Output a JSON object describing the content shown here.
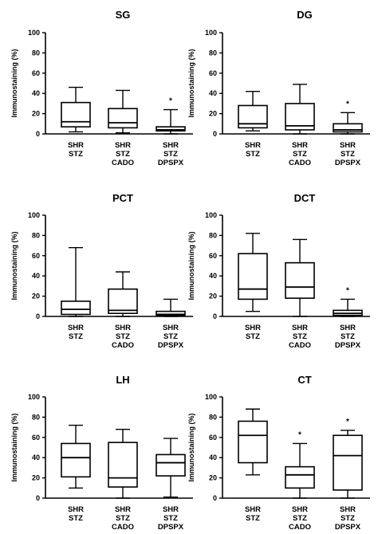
{
  "chart_data": [
    {
      "type": "box",
      "title": "SG",
      "ylabel": "Immunostaining (%)",
      "ylim": [
        0,
        100
      ],
      "yticks": [
        "0",
        "20",
        "40",
        "60",
        "80",
        "100"
      ],
      "categories": [
        [
          "SHR",
          "STZ"
        ],
        [
          "SHR",
          "STZ",
          "CADO"
        ],
        [
          "SHR",
          "STZ",
          "DPSPX"
        ]
      ],
      "boxes": [
        {
          "min": 2,
          "q1": 7,
          "median": 12,
          "q3": 31,
          "max": 46
        },
        {
          "min": 1,
          "q1": 6,
          "median": 11,
          "q3": 25,
          "max": 43
        },
        {
          "min": 0,
          "q1": 3,
          "median": 4,
          "q3": 7,
          "max": 24
        }
      ],
      "significance": [
        "",
        "",
        "*"
      ]
    },
    {
      "type": "box",
      "title": "DG",
      "ylabel": "Immunostaining (%)",
      "ylim": [
        0,
        100
      ],
      "yticks": [
        "0",
        "20",
        "40",
        "60",
        "80",
        "100"
      ],
      "categories": [
        [
          "SHR",
          "STZ"
        ],
        [
          "SHR",
          "STZ",
          "CADO"
        ],
        [
          "SHR",
          "STZ",
          "DPSPX"
        ]
      ],
      "boxes": [
        {
          "min": 3,
          "q1": 6,
          "median": 10,
          "q3": 28,
          "max": 42
        },
        {
          "min": 0,
          "q1": 4,
          "median": 8,
          "q3": 30,
          "max": 49
        },
        {
          "min": 0,
          "q1": 2,
          "median": 4,
          "q3": 10,
          "max": 21
        }
      ],
      "significance": [
        "",
        "",
        "*"
      ]
    },
    {
      "type": "box",
      "title": "PCT",
      "ylabel": "Immunostaining (%)",
      "ylim": [
        0,
        100
      ],
      "yticks": [
        "0",
        "20",
        "40",
        "60",
        "80",
        "100"
      ],
      "categories": [
        [
          "SHR",
          "STZ"
        ],
        [
          "SHR",
          "STZ",
          "CADO"
        ],
        [
          "SHR",
          "STZ",
          "DPSPX"
        ]
      ],
      "boxes": [
        {
          "min": 0,
          "q1": 2,
          "median": 7,
          "q3": 15,
          "max": 68
        },
        {
          "min": 0,
          "q1": 3,
          "median": 6,
          "q3": 27,
          "max": 44
        },
        {
          "min": 0,
          "q1": 1,
          "median": 2,
          "q3": 5,
          "max": 17
        }
      ],
      "significance": [
        "",
        "",
        ""
      ]
    },
    {
      "type": "box",
      "title": "DCT",
      "ylabel": "Immunostaining (%)",
      "ylim": [
        0,
        100
      ],
      "yticks": [
        "0",
        "20",
        "40",
        "60",
        "80",
        "100"
      ],
      "categories": [
        [
          "SHR",
          "STZ"
        ],
        [
          "SHR",
          "STZ",
          "CADO"
        ],
        [
          "SHR",
          "STZ",
          "DPSPX"
        ]
      ],
      "boxes": [
        {
          "min": 5,
          "q1": 17,
          "median": 27,
          "q3": 62,
          "max": 82
        },
        {
          "min": 0,
          "q1": 18,
          "median": 29,
          "q3": 53,
          "max": 76
        },
        {
          "min": 0,
          "q1": 1,
          "median": 3,
          "q3": 6,
          "max": 17
        }
      ],
      "significance": [
        "",
        "",
        "*"
      ]
    },
    {
      "type": "box",
      "title": "LH",
      "ylabel": "Immunostaining (%)",
      "ylim": [
        0,
        100
      ],
      "yticks": [
        "0",
        "20",
        "40",
        "60",
        "80",
        "100"
      ],
      "categories": [
        [
          "SHR",
          "STZ"
        ],
        [
          "SHR",
          "STZ",
          "CADO"
        ],
        [
          "SHR",
          "STZ",
          "DPSPX"
        ]
      ],
      "boxes": [
        {
          "min": 10,
          "q1": 21,
          "median": 40,
          "q3": 54,
          "max": 72
        },
        {
          "min": 0,
          "q1": 11,
          "median": 20,
          "q3": 55,
          "max": 68
        },
        {
          "min": 1,
          "q1": 22,
          "median": 35,
          "q3": 43,
          "max": 59
        }
      ],
      "significance": [
        "",
        "",
        ""
      ]
    },
    {
      "type": "box",
      "title": "CT",
      "ylabel": "Immunostaining (%)",
      "ylim": [
        0,
        100
      ],
      "yticks": [
        "0",
        "20",
        "40",
        "60",
        "80",
        "100"
      ],
      "categories": [
        [
          "SHR",
          "STZ"
        ],
        [
          "SHR",
          "STZ",
          "CADO"
        ],
        [
          "SHR",
          "STZ",
          "DPSPX"
        ]
      ],
      "boxes": [
        {
          "min": 23,
          "q1": 35,
          "median": 62,
          "q3": 76,
          "max": 88
        },
        {
          "min": 0,
          "q1": 10,
          "median": 23,
          "q3": 31,
          "max": 54
        },
        {
          "min": 0,
          "q1": 8,
          "median": 42,
          "q3": 62,
          "max": 67
        }
      ],
      "significance": [
        "",
        "*",
        "*"
      ]
    }
  ]
}
